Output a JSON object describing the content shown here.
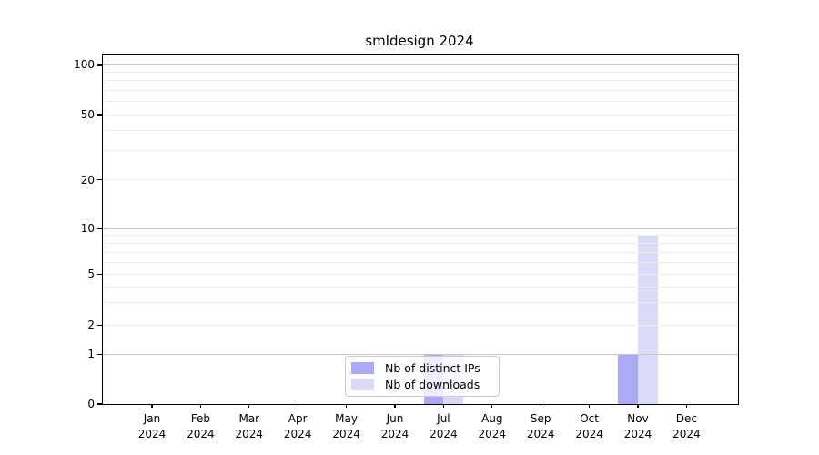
{
  "title": "smldesign 2024",
  "chart_data": {
    "type": "bar",
    "title": "smldesign 2024",
    "xlabel": "",
    "ylabel": "",
    "categories": [
      "Jan 2024",
      "Feb 2024",
      "Mar 2024",
      "Apr 2024",
      "May 2024",
      "Jun 2024",
      "Jul 2024",
      "Aug 2024",
      "Sep 2024",
      "Oct 2024",
      "Nov 2024",
      "Dec 2024"
    ],
    "series": [
      {
        "name": "Nb of distinct IPs",
        "color": "#aaaaf7",
        "values": [
          0,
          0,
          0,
          0,
          0,
          0,
          1,
          0,
          0,
          0,
          1,
          0
        ]
      },
      {
        "name": "Nb of downloads",
        "color": "#dadaf9",
        "values": [
          0,
          0,
          0,
          0,
          0,
          0,
          1,
          0,
          0,
          0,
          9,
          0
        ]
      }
    ],
    "y_ticks": [
      {
        "label": "0",
        "value": 0
      },
      {
        "label": "1",
        "value": 1
      },
      {
        "label": "2",
        "value": 2
      },
      {
        "label": "5",
        "value": 5
      },
      {
        "label": "10",
        "value": 10
      },
      {
        "label": "20",
        "value": 20
      },
      {
        "label": "50",
        "value": 50
      },
      {
        "label": "100",
        "value": 100
      }
    ],
    "ylim": [
      0,
      113
    ],
    "grid": {
      "enabled": true,
      "major_values": [
        1,
        10,
        100
      ],
      "minor_values": [
        2,
        3,
        4,
        5,
        6,
        7,
        8,
        9,
        20,
        30,
        40,
        50,
        60,
        70,
        80,
        90
      ],
      "major_color": "#c7c7c7",
      "minor_color": "#ececec"
    },
    "scale": {
      "type": "custom-log-with-zero",
      "anchors": [
        [
          0,
          0
        ],
        [
          1,
          0.1424
        ],
        [
          2,
          0.2253
        ],
        [
          5,
          0.3711
        ],
        [
          10,
          0.5018
        ],
        [
          20,
          0.6414
        ],
        [
          50,
          0.8281
        ],
        [
          100,
          0.9714
        ]
      ]
    },
    "legend": {
      "position": "inside-bottom-center",
      "entries": [
        "Nb of distinct IPs",
        "Nb of downloads"
      ]
    }
  }
}
